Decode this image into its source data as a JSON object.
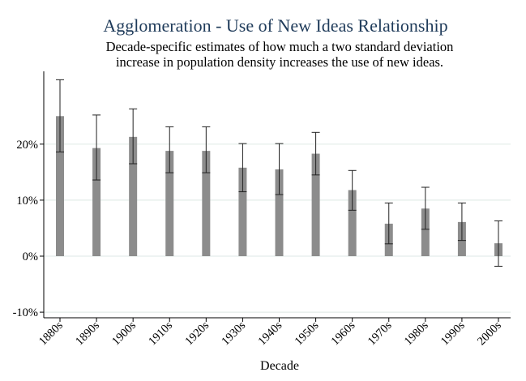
{
  "chart_data": {
    "type": "bar",
    "title": "Agglomeration - Use of New Ideas Relationship",
    "subtitle_lines": [
      "Decade-specific estimates of how much a two standard deviation",
      "increase in population density increases the use of new ideas."
    ],
    "xlabel": "Decade",
    "ylabel": "",
    "categories": [
      "1880s",
      "1890s",
      "1900s",
      "1910s",
      "1920s",
      "1930s",
      "1940s",
      "1950s",
      "1960s",
      "1970s",
      "1980s",
      "1990s",
      "2000s"
    ],
    "values": [
      0.25,
      0.193,
      0.213,
      0.188,
      0.188,
      0.158,
      0.155,
      0.183,
      0.118,
      0.058,
      0.085,
      0.061,
      0.023
    ],
    "ci_low": [
      0.186,
      0.136,
      0.165,
      0.149,
      0.149,
      0.115,
      0.11,
      0.145,
      0.082,
      0.022,
      0.048,
      0.028,
      -0.018
    ],
    "ci_high": [
      0.315,
      0.252,
      0.263,
      0.231,
      0.231,
      0.201,
      0.201,
      0.221,
      0.153,
      0.095,
      0.123,
      0.095,
      0.063
    ],
    "ylim": [
      -0.11,
      0.33
    ],
    "yticks": [
      -0.1,
      0,
      0.1,
      0.2
    ],
    "ytick_labels": [
      "-10%",
      "0%",
      "10%",
      "20%"
    ],
    "grid": true,
    "legend": "none",
    "colors": {
      "bar": "#8c8c8c",
      "grid": "#e3ece9",
      "title": "#1f3b5a"
    }
  }
}
